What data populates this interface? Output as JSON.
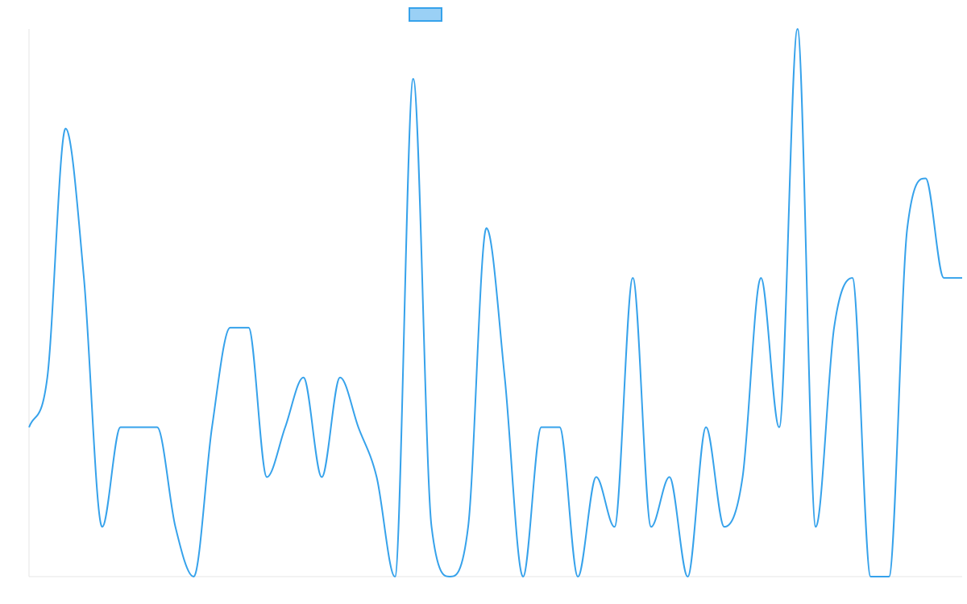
{
  "chart_data": {
    "type": "line",
    "title": "",
    "xlabel": "",
    "ylabel": "",
    "grid": false,
    "legend_placement": "top-center",
    "ylim": [
      0,
      11
    ],
    "x": [
      0,
      1,
      2,
      3,
      4,
      5,
      6,
      7,
      8,
      9,
      10,
      11,
      12,
      13,
      14,
      15,
      16,
      17,
      18,
      19,
      20,
      21,
      22,
      23,
      24,
      25,
      26,
      27,
      28,
      29,
      30,
      31,
      32,
      33,
      34,
      35,
      36,
      37,
      38,
      39,
      40,
      41,
      42,
      43,
      44,
      45,
      46,
      47,
      48,
      49,
      50,
      51
    ],
    "series": [
      {
        "name": "",
        "color": "#36a2eb",
        "fill": "#9ad0f5",
        "values": [
          3,
          4,
          9,
          6,
          1,
          3,
          3,
          3,
          1,
          0,
          3,
          5,
          5,
          2,
          3,
          4,
          2,
          4,
          3,
          2,
          0,
          10,
          1,
          0,
          1,
          7,
          4,
          0,
          3,
          3,
          0,
          2,
          1,
          6,
          1,
          2,
          0,
          3,
          1,
          2,
          6,
          3,
          11,
          1,
          5,
          6,
          0,
          0,
          7,
          8,
          6,
          6
        ]
      }
    ]
  }
}
